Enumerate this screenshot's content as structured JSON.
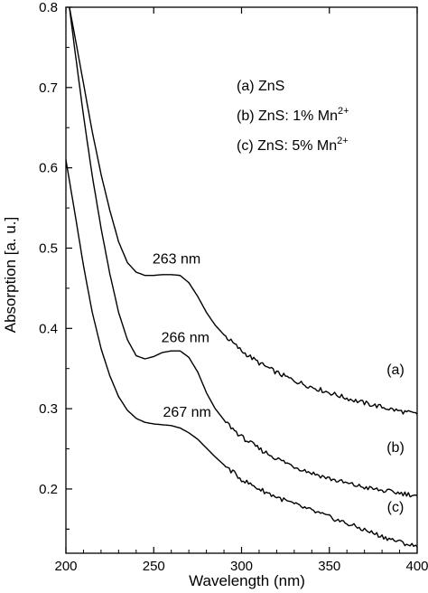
{
  "chart_data": {
    "type": "line",
    "title": "",
    "xlabel": "Wavelength (nm)",
    "ylabel": "Absorption [a. u.]",
    "xlim": [
      200,
      400
    ],
    "ylim": [
      0.12,
      0.8
    ],
    "xticks": [
      200,
      250,
      300,
      350,
      400
    ],
    "xtick_labels": [
      "200",
      "250",
      "300",
      "350",
      "400"
    ],
    "yticks": [
      0.2,
      0.3,
      0.4,
      0.5,
      0.6,
      0.7,
      0.8
    ],
    "ytick_labels": [
      "0.2",
      "0.3",
      "0.4",
      "0.5",
      "0.6",
      "0.7",
      "0.8"
    ],
    "grid": false,
    "legend_position": "top-right",
    "legend": [
      {
        "prefix": "(a) ZnS",
        "base": "",
        "sup": ""
      },
      {
        "prefix": "(b) ZnS: 1% Mn",
        "base": "",
        "sup": "2+"
      },
      {
        "prefix": "(c) ZnS: 5% Mn",
        "base": "",
        "sup": "2+"
      }
    ],
    "series": [
      {
        "name": "(a)",
        "end_label": "(a)",
        "x": [
          202,
          205,
          210,
          215,
          220,
          225,
          230,
          235,
          240,
          245,
          250,
          255,
          260,
          265,
          270,
          275,
          280,
          285,
          290,
          295,
          300,
          310,
          320,
          330,
          340,
          350,
          360,
          370,
          380,
          390,
          400
        ],
        "y": [
          0.8,
          0.765,
          0.705,
          0.645,
          0.592,
          0.547,
          0.508,
          0.482,
          0.47,
          0.466,
          0.466,
          0.467,
          0.467,
          0.466,
          0.457,
          0.44,
          0.42,
          0.404,
          0.392,
          0.382,
          0.372,
          0.357,
          0.345,
          0.335,
          0.327,
          0.32,
          0.313,
          0.307,
          0.302,
          0.297,
          0.293
        ]
      },
      {
        "name": "(b)",
        "end_label": "(b)",
        "x": [
          202,
          205,
          210,
          215,
          220,
          225,
          230,
          235,
          240,
          245,
          250,
          255,
          260,
          265,
          270,
          275,
          280,
          285,
          290,
          295,
          300,
          310,
          320,
          330,
          340,
          350,
          360,
          370,
          380,
          390,
          400
        ],
        "y": [
          0.8,
          0.748,
          0.665,
          0.59,
          0.525,
          0.468,
          0.42,
          0.386,
          0.366,
          0.362,
          0.365,
          0.37,
          0.372,
          0.372,
          0.364,
          0.346,
          0.32,
          0.3,
          0.286,
          0.275,
          0.265,
          0.25,
          0.238,
          0.228,
          0.22,
          0.213,
          0.207,
          0.202,
          0.198,
          0.195,
          0.192
        ]
      },
      {
        "name": "(c)",
        "end_label": "(c)",
        "x": [
          200,
          205,
          210,
          215,
          220,
          225,
          230,
          235,
          240,
          245,
          250,
          255,
          260,
          265,
          270,
          275,
          280,
          285,
          290,
          295,
          300,
          310,
          320,
          330,
          340,
          350,
          360,
          370,
          380,
          390,
          400
        ],
        "y": [
          0.61,
          0.545,
          0.478,
          0.42,
          0.375,
          0.341,
          0.315,
          0.298,
          0.288,
          0.283,
          0.281,
          0.28,
          0.279,
          0.276,
          0.27,
          0.262,
          0.251,
          0.24,
          0.23,
          0.221,
          0.212,
          0.2,
          0.19,
          0.181,
          0.173,
          0.165,
          0.157,
          0.149,
          0.141,
          0.134,
          0.128
        ]
      }
    ],
    "annotations": [
      {
        "text": "263 nm",
        "x": 263,
        "y": 0.481
      },
      {
        "text": "266 nm",
        "x": 268,
        "y": 0.383
      },
      {
        "text": "267 nm",
        "x": 269,
        "y": 0.29
      }
    ]
  }
}
